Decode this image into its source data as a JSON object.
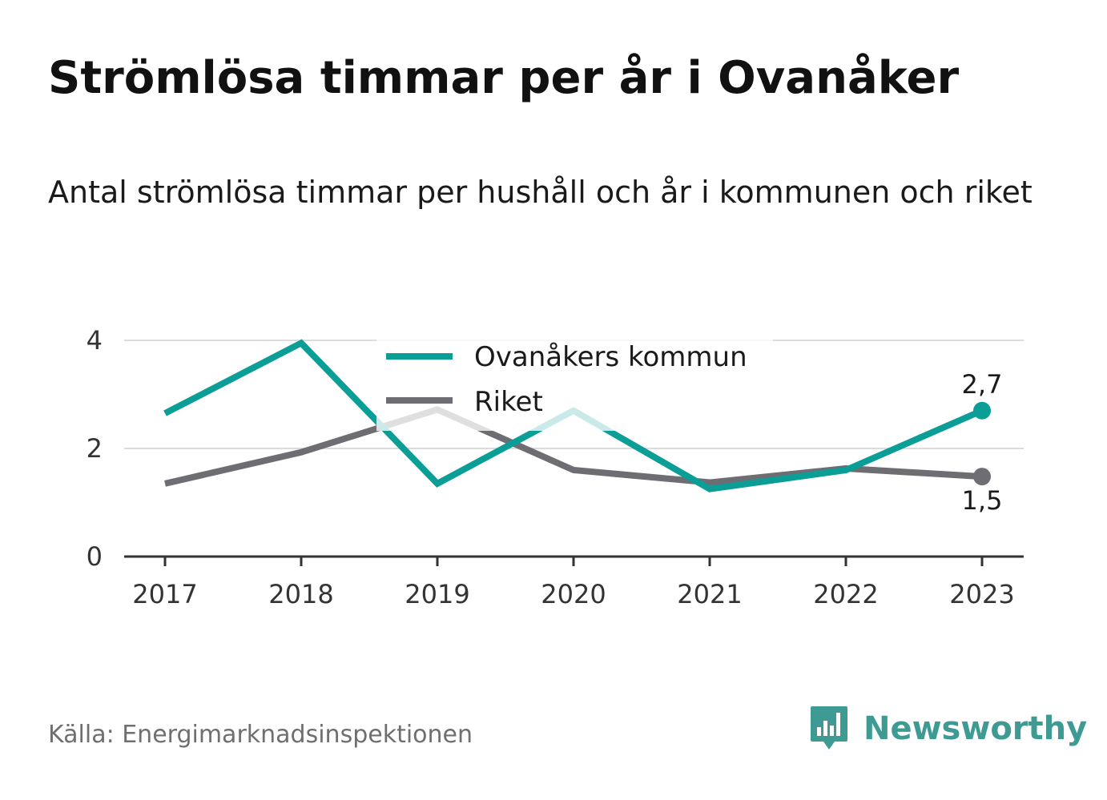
{
  "header": {
    "title": "Strömlösa timmar per år i Ovanåker",
    "subtitle": "Antal strömlösa timmar per hushåll och år i kommunen och riket"
  },
  "chart_data": {
    "type": "line",
    "title": "Strömlösa timmar per år i Ovanåker",
    "subtitle": "Antal strömlösa timmar per hushåll och år i kommunen och riket",
    "xlabel": "",
    "ylabel": "",
    "categories": [
      "2017",
      "2018",
      "2019",
      "2020",
      "2021",
      "2022",
      "2023"
    ],
    "ylim": [
      0,
      4
    ],
    "yticks": [
      "0",
      "2",
      "4"
    ],
    "grid": true,
    "legend_position": "top-center",
    "series": [
      {
        "name": "Ovanåkers kommun",
        "color": "#0a9e96",
        "values": [
          2.65,
          3.95,
          1.35,
          2.7,
          1.25,
          1.6,
          2.7
        ],
        "end_label": "2,7"
      },
      {
        "name": "Riket",
        "color": "#6e6d73",
        "values": [
          1.35,
          1.93,
          2.72,
          1.6,
          1.37,
          1.63,
          1.48
        ],
        "end_label": "1,5"
      }
    ]
  },
  "footer": {
    "source": "Källa: Energimarknadsinspektionen",
    "brand": "Newsworthy",
    "brand_icon": "bar-chart-speech-bubble-icon",
    "brand_color": "#3d9b94"
  }
}
